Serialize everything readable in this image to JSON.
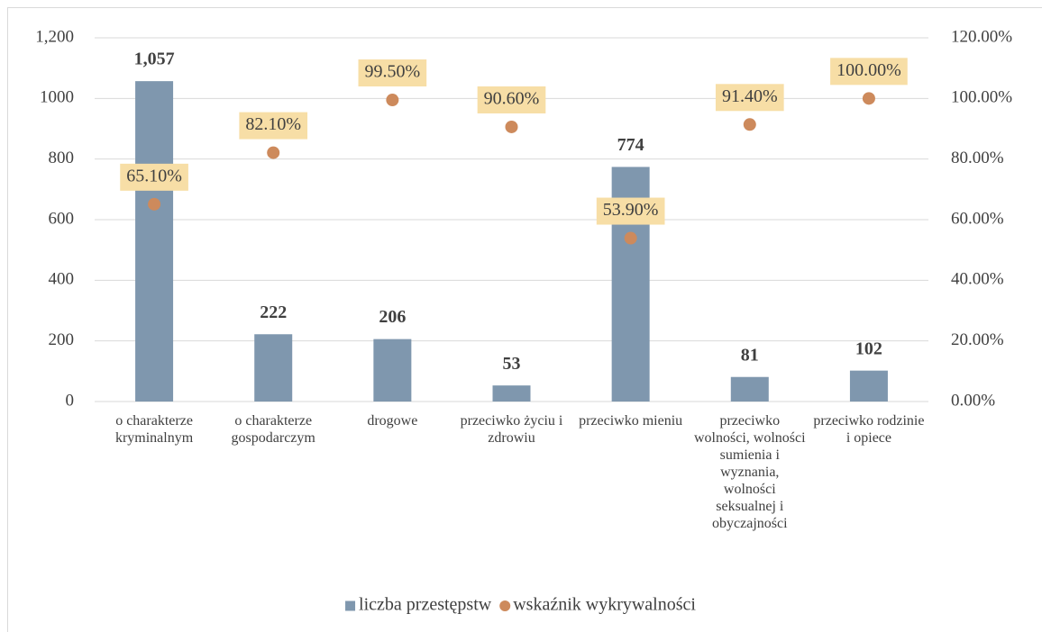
{
  "chart_data": {
    "type": "bar",
    "categories": [
      "o charakterze kryminalnym",
      "o charakterze gospodarczym",
      "drogowe",
      "przeciwko życiu i zdrowiu",
      "przeciwko mieniu",
      "przeciwko wolności, wolności sumienia i wyznania, wolności seksualnej i obyczajności",
      "przeciwko rodzinie i opiece"
    ],
    "series": [
      {
        "name": "liczba przestępstw",
        "color": "#7f97ae",
        "type": "bar",
        "values": [
          1057,
          222,
          206,
          53,
          774,
          81,
          102
        ],
        "value_labels": [
          "1,057",
          "222",
          "206",
          "53",
          "774",
          "81",
          "102"
        ]
      },
      {
        "name": "wskaźnik wykrywalności",
        "color": "#cd8a5c",
        "type": "scatter",
        "axis": "y2",
        "values": [
          65.1,
          82.1,
          99.5,
          90.6,
          53.9,
          91.4,
          100
        ],
        "value_labels": [
          "65.10%",
          "82.10%",
          "99.50%",
          "90.60%",
          "53.90%",
          "91.40%",
          "100.00%"
        ]
      }
    ],
    "ylim": [
      0,
      1200
    ],
    "yticks": [
      0,
      200,
      400,
      600,
      800,
      1000,
      {
        "value": 1200,
        "label": "1,200"
      }
    ],
    "y2lim": [
      0,
      120
    ],
    "y2ticks": [
      {
        "value": 0,
        "label": "0.00%"
      },
      {
        "value": 20,
        "label": "20.00%"
      },
      {
        "value": 40,
        "label": "40.00%"
      },
      {
        "value": 60,
        "label": "60.00%"
      },
      {
        "value": 80,
        "label": "80.00%"
      },
      {
        "value": 100,
        "label": "100.00%"
      },
      {
        "value": 120,
        "label": "120.00%"
      }
    ],
    "grid": true,
    "legend": "bottom"
  }
}
